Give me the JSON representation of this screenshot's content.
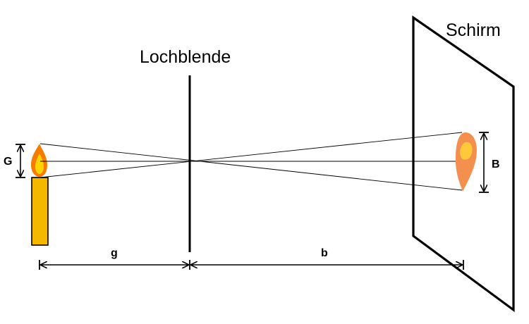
{
  "diagram": {
    "labels": {
      "aperture": "Lochblende",
      "screen": "Schirm",
      "object_size": "G",
      "image_size": "B",
      "object_distance": "g",
      "image_distance": "b"
    },
    "colors": {
      "candle_body": "#f5b800",
      "flame_outer": "#f57c00",
      "flame_inner": "#ffd400",
      "image_flame_outer": "#f4904f",
      "image_flame_inner": "#ffc93a",
      "lines": "#000000"
    }
  }
}
